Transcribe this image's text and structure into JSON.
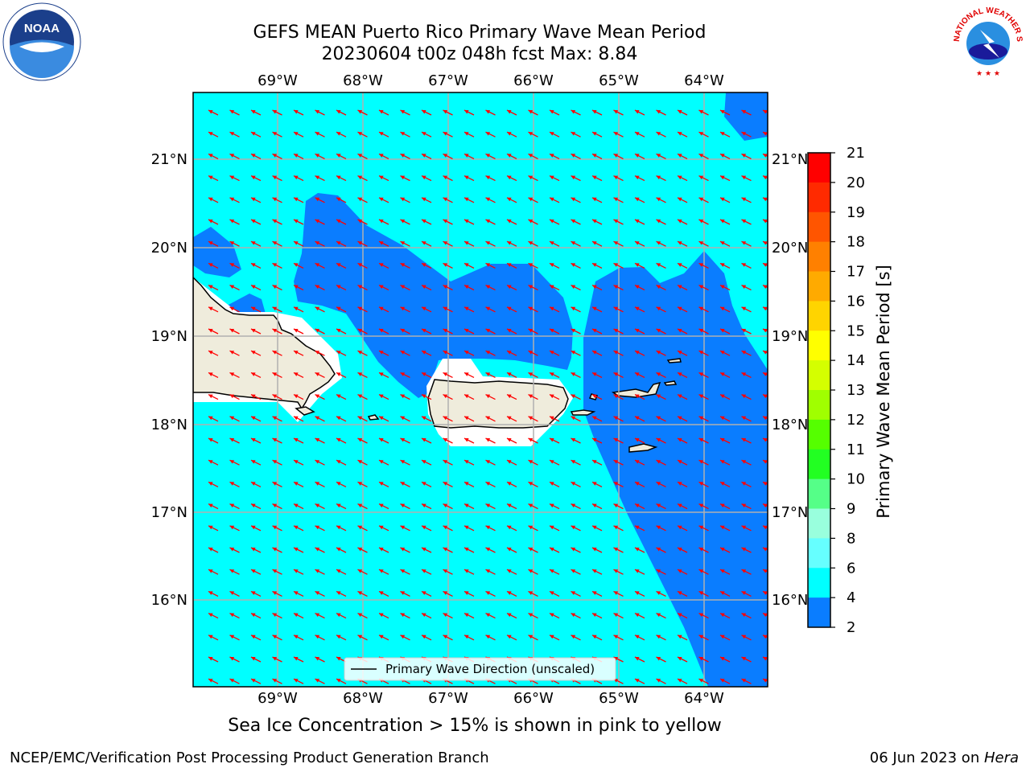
{
  "header": {
    "title_line1": "GEFS MEAN Puerto Rico Primary Wave Mean Period",
    "title_line2": "20230604 t00z 048h fcst   Max: 8.84"
  },
  "map": {
    "lon_labels": [
      "69°W",
      "68°W",
      "67°W",
      "66°W",
      "65°W",
      "64°W"
    ],
    "lat_labels": [
      "21°N",
      "20°N",
      "19°N",
      "18°N",
      "17°N",
      "16°N"
    ],
    "legend_text": "Primary Wave Direction (unscaled)",
    "colors": {
      "land": "#efecdc",
      "period_4_6": "#0a7dff",
      "period_6_8": "#00ffff",
      "arrow": "#ff0000",
      "grid": "#b0b0b0"
    }
  },
  "colorbar": {
    "title": "Primary Wave Mean Period [s]",
    "ticks": [
      "21",
      "20",
      "19",
      "18",
      "17",
      "16",
      "15",
      "14",
      "13",
      "12",
      "11",
      "10",
      "9",
      "8",
      "6",
      "4",
      "2"
    ],
    "colors": [
      "#ff0000",
      "#ff2a00",
      "#ff5500",
      "#ff8000",
      "#ffaa00",
      "#ffd400",
      "#ffff00",
      "#d4ff00",
      "#a0ff00",
      "#55ff00",
      "#22ff22",
      "#55ff88",
      "#99ffdd",
      "#66ffff",
      "#00ffff",
      "#0a7dff",
      "#0000ff"
    ]
  },
  "notes": {
    "sea_ice": "Sea Ice Concentration > 15% is shown in pink to yellow"
  },
  "footer": {
    "left": "NCEP/EMC/Verification Post Processing Product Generation Branch",
    "right_prefix": "06 Jun 2023 on ",
    "right_host": "Hera"
  },
  "logos": {
    "noaa_text": "NOAA",
    "nws_text": "NATIONAL WEATHER SERVICE"
  }
}
